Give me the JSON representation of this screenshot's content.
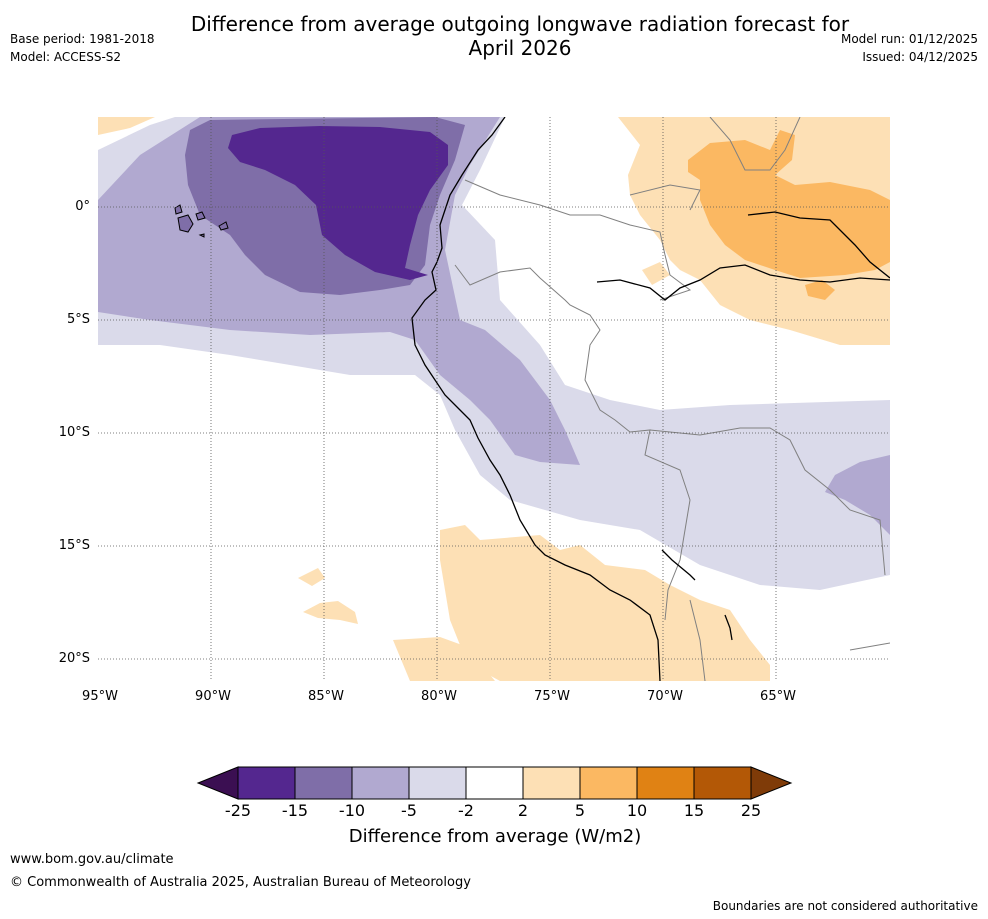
{
  "title_line1": "Difference from average outgoing longwave radiation forecast for",
  "title_line2": "April 2026",
  "meta": {
    "base_period": "Base period: 1981-2018",
    "model": "Model: ACCESS-S2",
    "model_run": "Model run: 01/12/2025",
    "issued": "Issued: 04/12/2025"
  },
  "axes": {
    "lat_labels": [
      "0°",
      "5°S",
      "10°S",
      "15°S",
      "20°S"
    ],
    "lon_labels": [
      "95°W",
      "90°W",
      "85°W",
      "80°W",
      "75°W",
      "70°W",
      "65°W"
    ]
  },
  "colorbar": {
    "title": "Difference from average (W/m2)",
    "ticks": [
      "-25",
      "-15",
      "-10",
      "-5",
      "-2",
      "2",
      "5",
      "10",
      "15",
      "25"
    ],
    "colors": [
      "#3b0f52",
      "#54278f",
      "#7f6ea8",
      "#b1a9d0",
      "#dadaea",
      "#ffffff",
      "#fde0b5",
      "#fbb862",
      "#e08214",
      "#b35806",
      "#7f3b08"
    ]
  },
  "footer": {
    "url": "www.bom.gov.au/climate",
    "copyright": "© Commonwealth of Australia 2025, Australian Bureau of Meteorology",
    "disclaimer": "Boundaries are not considered authoritative"
  }
}
